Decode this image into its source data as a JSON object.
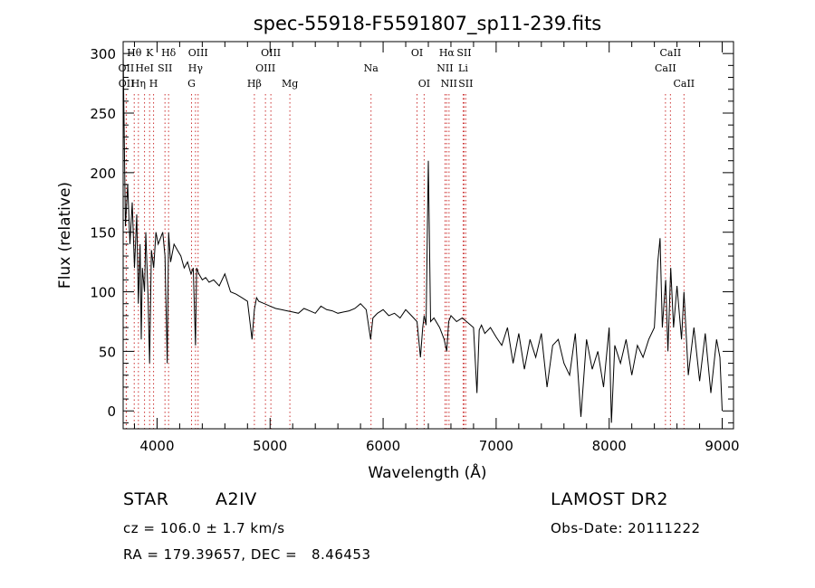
{
  "chart_data": {
    "type": "line",
    "title": "spec-55918-F5591807_sp11-239.fits",
    "xlabel": "Wavelength (Å)",
    "ylabel": "Flux (relative)",
    "xlim": [
      3700,
      9100
    ],
    "ylim": [
      -15,
      310
    ],
    "xticks": [
      4000,
      5000,
      6000,
      7000,
      8000,
      9000
    ],
    "yticks": [
      0,
      50,
      100,
      150,
      200,
      250,
      300
    ],
    "grid": false,
    "line_color": "#000000",
    "marker_color": "#cc3333",
    "spectrum": {
      "x": [
        3700,
        3720,
        3740,
        3760,
        3780,
        3800,
        3820,
        3835,
        3850,
        3860,
        3870,
        3889,
        3900,
        3920,
        3934,
        3950,
        3970,
        3990,
        4010,
        4030,
        4050,
        4070,
        4090,
        4102,
        4120,
        4150,
        4180,
        4210,
        4240,
        4270,
        4300,
        4320,
        4340,
        4350,
        4370,
        4400,
        4430,
        4460,
        4500,
        4550,
        4600,
        4650,
        4700,
        4750,
        4800,
        4840,
        4861,
        4880,
        4900,
        4950,
        5000,
        5050,
        5100,
        5150,
        5200,
        5250,
        5300,
        5350,
        5400,
        5450,
        5500,
        5550,
        5600,
        5650,
        5700,
        5750,
        5800,
        5850,
        5890,
        5910,
        5930,
        5950,
        6000,
        6050,
        6100,
        6150,
        6200,
        6250,
        6300,
        6330,
        6350,
        6363,
        6380,
        6400,
        6420,
        6450,
        6500,
        6540,
        6563,
        6580,
        6600,
        6650,
        6700,
        6750,
        6800,
        6830,
        6850,
        6870,
        6900,
        6950,
        7000,
        7050,
        7100,
        7150,
        7200,
        7250,
        7300,
        7350,
        7400,
        7450,
        7500,
        7550,
        7600,
        7650,
        7700,
        7750,
        7800,
        7850,
        7900,
        7950,
        8000,
        8020,
        8050,
        8100,
        8150,
        8200,
        8250,
        8300,
        8350,
        8400,
        8430,
        8450,
        8470,
        8500,
        8520,
        8545,
        8570,
        8600,
        8640,
        8662,
        8700,
        8750,
        8800,
        8850,
        8900,
        8950,
        8980,
        9000
      ],
      "y": [
        300,
        155,
        190,
        140,
        175,
        120,
        165,
        90,
        140,
        60,
        120,
        100,
        150,
        95,
        40,
        135,
        120,
        150,
        140,
        145,
        150,
        130,
        40,
        150,
        125,
        140,
        135,
        130,
        120,
        125,
        115,
        120,
        55,
        120,
        115,
        110,
        112,
        108,
        110,
        105,
        115,
        100,
        98,
        95,
        92,
        60,
        85,
        95,
        92,
        90,
        88,
        86,
        85,
        84,
        83,
        82,
        86,
        84,
        82,
        88,
        85,
        84,
        82,
        83,
        84,
        86,
        90,
        85,
        60,
        78,
        80,
        82,
        85,
        80,
        82,
        78,
        85,
        80,
        75,
        45,
        70,
        80,
        72,
        210,
        75,
        78,
        70,
        60,
        50,
        75,
        80,
        75,
        78,
        74,
        70,
        15,
        68,
        72,
        65,
        70,
        62,
        55,
        70,
        40,
        65,
        35,
        60,
        45,
        65,
        20,
        55,
        60,
        40,
        30,
        65,
        -5,
        60,
        35,
        50,
        20,
        70,
        -10,
        55,
        40,
        60,
        30,
        55,
        45,
        60,
        70,
        125,
        145,
        70,
        110,
        50,
        120,
        70,
        105,
        60,
        100,
        30,
        70,
        25,
        65,
        15,
        60,
        45,
        0
      ]
    },
    "lines": [
      {
        "label": "Hθ",
        "wl": 3798,
        "row": 0
      },
      {
        "label": "OII",
        "wl": 3727,
        "row": 1
      },
      {
        "label": "OII",
        "wl": 3729,
        "row": 2
      },
      {
        "label": "K",
        "wl": 3934,
        "row": 0
      },
      {
        "label": "HeI",
        "wl": 3889,
        "row": 1
      },
      {
        "label": "Hη",
        "wl": 3835,
        "row": 2
      },
      {
        "label": "SII",
        "wl": 4070,
        "row": 1
      },
      {
        "label": "H",
        "wl": 3969,
        "row": 2
      },
      {
        "label": "Hδ",
        "wl": 4102,
        "row": 0
      },
      {
        "label": "OIII",
        "wl": 4363,
        "row": 0
      },
      {
        "label": "Hγ",
        "wl": 4340,
        "row": 1
      },
      {
        "label": "G",
        "wl": 4305,
        "row": 2
      },
      {
        "label": "Hβ",
        "wl": 4861,
        "row": 2
      },
      {
        "label": "OIII",
        "wl": 5007,
        "row": 0
      },
      {
        "label": "OIII",
        "wl": 4959,
        "row": 1
      },
      {
        "label": "Mg",
        "wl": 5175,
        "row": 2
      },
      {
        "label": "Na",
        "wl": 5893,
        "row": 1
      },
      {
        "label": "OI",
        "wl": 6300,
        "row": 0
      },
      {
        "label": "OI",
        "wl": 6363,
        "row": 2
      },
      {
        "label": "Hα",
        "wl": 6563,
        "row": 0
      },
      {
        "label": "SII",
        "wl": 6716,
        "row": 0
      },
      {
        "label": "NII",
        "wl": 6548,
        "row": 1
      },
      {
        "label": "Li",
        "wl": 6708,
        "row": 1
      },
      {
        "label": "NII",
        "wl": 6583,
        "row": 2
      },
      {
        "label": "SII",
        "wl": 6731,
        "row": 2
      },
      {
        "label": "CaII",
        "wl": 8542,
        "row": 0
      },
      {
        "label": "CaII",
        "wl": 8498,
        "row": 1
      },
      {
        "label": "CaII",
        "wl": 8662,
        "row": 2
      }
    ]
  },
  "info": {
    "object_type": "STAR",
    "spectral_class": "A2IV",
    "survey": "LAMOST DR2",
    "velocity": "cz = 106.0 ± 1.7 km/s",
    "obs_date": "Obs-Date: 20111222",
    "coordinates": "RA = 179.39657, DEC =   8.46453"
  }
}
